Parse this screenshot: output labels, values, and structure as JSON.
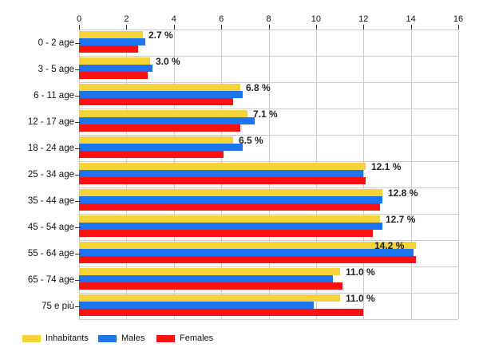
{
  "chart_data": {
    "type": "bar",
    "orientation": "horizontal",
    "title": "",
    "categories": [
      "0 - 2 age",
      "3 - 5 age",
      "6 - 11 age",
      "12 - 17 age",
      "18 - 24 age",
      "25 - 34 age",
      "35 - 44 age",
      "45 - 54 age",
      "55 - 64 age",
      "65 - 74 age",
      "75 e più"
    ],
    "series": [
      {
        "name": "Inhabitants",
        "color": "#F5D339",
        "values": [
          2.7,
          3.0,
          6.8,
          7.1,
          6.5,
          12.1,
          12.8,
          12.7,
          14.2,
          11.0,
          11.0
        ]
      },
      {
        "name": "Males",
        "color": "#1C75EE",
        "values": [
          2.8,
          3.1,
          6.9,
          7.4,
          6.9,
          12.0,
          12.8,
          12.8,
          14.1,
          10.7,
          9.9
        ]
      },
      {
        "name": "Females",
        "color": "#FB1111",
        "values": [
          2.5,
          2.9,
          6.5,
          6.8,
          6.1,
          12.1,
          12.7,
          12.4,
          14.2,
          11.1,
          12.0
        ]
      }
    ],
    "value_labels": [
      "2.7 %",
      "3.0 %",
      "6.8 %",
      "7.1 %",
      "6.5 %",
      "12.1 %",
      "12.8 %",
      "12.7 %",
      "14.2 %",
      "11.0 %",
      "11.0 %"
    ],
    "x_axis": {
      "position": "top",
      "min": 0,
      "max": 16,
      "tick_step": 2,
      "tick_labels": [
        "0",
        "2",
        "4",
        "6",
        "8",
        "10",
        "12",
        "14",
        "16"
      ]
    },
    "grid": true,
    "gridline_color": "#cccccc",
    "background_color": "#ffffff",
    "legend_position": "bottom-left"
  }
}
